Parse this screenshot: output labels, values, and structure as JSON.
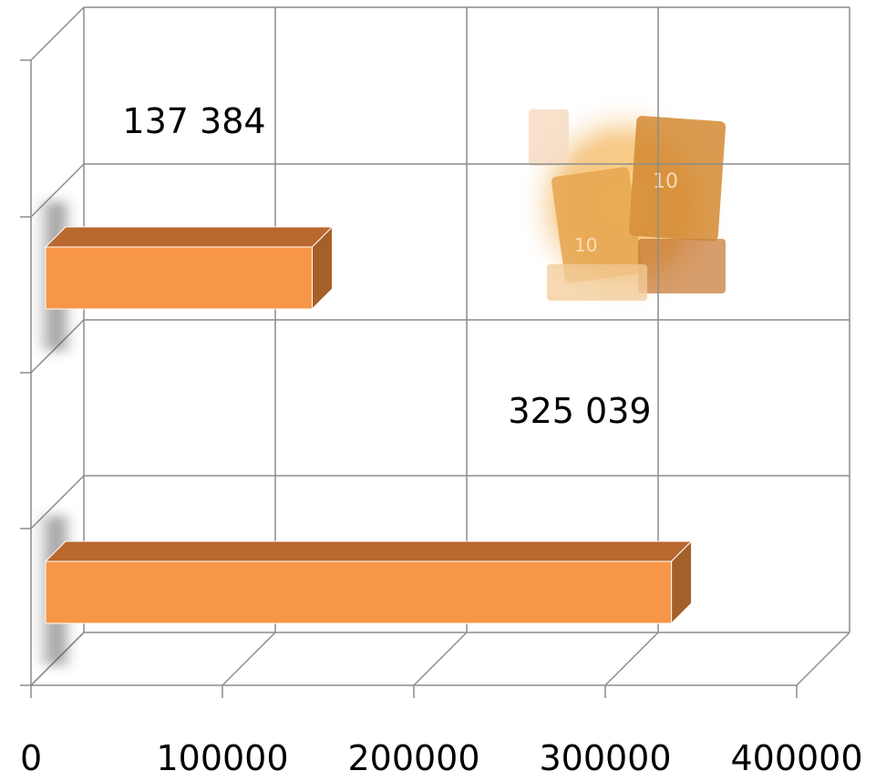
{
  "chart_data": {
    "type": "bar",
    "orientation": "horizontal",
    "style": "3d",
    "categories": [
      "",
      ""
    ],
    "values": [
      137384,
      325039
    ],
    "data_labels": [
      "137  384",
      "325  039"
    ],
    "x_ticks": [
      "0",
      "100000",
      "200000",
      "300000",
      "400000"
    ],
    "xlim": [
      0,
      400000
    ],
    "title": "",
    "xlabel": "",
    "ylabel": "",
    "grid": true,
    "legend": "none",
    "bar_color": "#f79646",
    "bar_top_color": "#b9682e",
    "bar_side_color": "#a5602a",
    "gridline_color": "#8c8c8c",
    "decoration": "gold-bars-image"
  }
}
